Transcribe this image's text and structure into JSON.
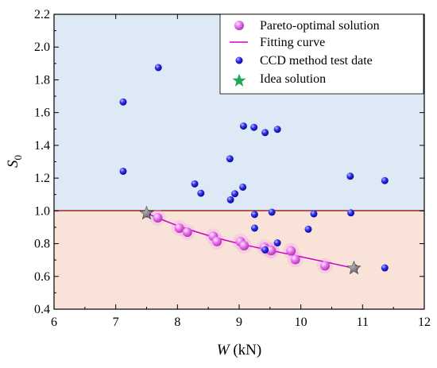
{
  "chart_data": {
    "type": "scatter",
    "xlabel": {
      "main": "W",
      "unit": " (kN)"
    },
    "ylabel": {
      "main": "S",
      "sub": "0"
    },
    "xlim": [
      6,
      12
    ],
    "ylim": [
      0.4,
      2.2
    ],
    "xticks": [
      "6",
      "7",
      "8",
      "9",
      "10",
      "11",
      "12"
    ],
    "yticks": [
      "0.4",
      "0.6",
      "0.8",
      "1.0",
      "1.2",
      "1.4",
      "1.6",
      "1.8",
      "2.0",
      "2.2"
    ],
    "threshold_y": 1.0,
    "legend": {
      "position": "top-right",
      "items": [
        "Pareto-optimal solution",
        "Fitting curve",
        "CCD method test date",
        "Idea solution"
      ]
    },
    "colors": {
      "upper_region": "#dde9f5",
      "lower_region": "#f9e3d8",
      "threshold_line": "#8b0000",
      "pareto": "#e070e8",
      "fitting_curve": "#cc00cc",
      "ccd": "#1a1adb",
      "ideal": "#1fa85a"
    },
    "series": [
      {
        "name": "Pareto-optimal solution",
        "marker": "sphere",
        "x": [
          7.68,
          8.03,
          8.16,
          8.58,
          8.64,
          9.02,
          9.08,
          9.41,
          9.51,
          9.52,
          9.84,
          9.91,
          10.39
        ],
        "y": [
          0.958,
          0.895,
          0.87,
          0.845,
          0.813,
          0.812,
          0.788,
          0.778,
          0.76,
          0.758,
          0.756,
          0.703,
          0.665
        ]
      },
      {
        "name": "Fitting curve",
        "marker": "line",
        "x": [
          7.5,
          8.0,
          8.5,
          9.0,
          9.5,
          10.0,
          10.5,
          10.86
        ],
        "y": [
          0.985,
          0.91,
          0.85,
          0.8,
          0.76,
          0.72,
          0.68,
          0.65
        ]
      },
      {
        "name": "CCD method test date",
        "marker": "sphere",
        "x": [
          7.12,
          7.12,
          7.69,
          8.28,
          8.38,
          8.85,
          8.86,
          8.93,
          9.06,
          9.07,
          9.24,
          9.25,
          9.25,
          9.42,
          9.42,
          9.53,
          9.62,
          9.62,
          10.12,
          10.21,
          10.8,
          10.81,
          11.36,
          11.36,
          10.87,
          7.51
        ],
        "y": [
          1.665,
          1.242,
          1.875,
          1.165,
          1.108,
          1.318,
          1.068,
          1.105,
          1.145,
          1.518,
          1.51,
          0.978,
          0.895,
          1.478,
          0.762,
          0.992,
          1.498,
          0.805,
          0.888,
          0.982,
          1.212,
          0.988,
          1.185,
          0.652,
          0.652,
          0.982
        ]
      },
      {
        "name": "Idea solution",
        "marker": "star",
        "x": [
          7.5,
          10.86
        ],
        "y": [
          0.985,
          0.65
        ]
      }
    ]
  }
}
